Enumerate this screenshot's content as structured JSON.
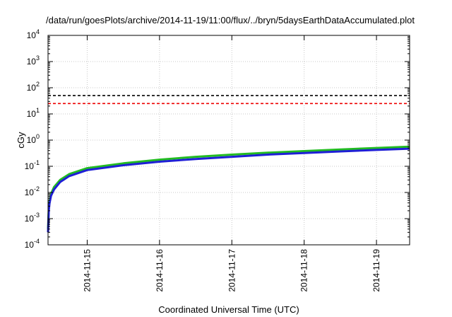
{
  "chart_data": {
    "type": "line",
    "title": "/data/run/goesPlots/archive/2014-11-19/11:00/flux/../bryn/5daysEarthDataAccumulated.plot",
    "xlabel": "Coordinated Universal Time (UTC)",
    "ylabel": "cGy",
    "yscale": "log",
    "ylim": [
      0.0001,
      10000
    ],
    "xlim": [
      "2014-11-14 11:00",
      "2014-11-19 11:00"
    ],
    "grid": true,
    "y_ticks": [
      {
        "base": "10",
        "exp": "-4",
        "value": 0.0001
      },
      {
        "base": "10",
        "exp": "-3",
        "value": 0.001
      },
      {
        "base": "10",
        "exp": "-2",
        "value": 0.01
      },
      {
        "base": "10",
        "exp": "-1",
        "value": 0.1
      },
      {
        "base": "10",
        "exp": "0",
        "value": 1
      },
      {
        "base": "10",
        "exp": "1",
        "value": 10
      },
      {
        "base": "10",
        "exp": "2",
        "value": 100
      },
      {
        "base": "10",
        "exp": "3",
        "value": 1000
      },
      {
        "base": "10",
        "exp": "4",
        "value": 10000
      }
    ],
    "x_ticks": [
      {
        "label": "2014-11-15",
        "value": "2014-11-15 00:00"
      },
      {
        "label": "2014-11-16",
        "value": "2014-11-16 00:00"
      },
      {
        "label": "2014-11-17",
        "value": "2014-11-17 00:00"
      },
      {
        "label": "2014-11-18",
        "value": "2014-11-18 00:00"
      },
      {
        "label": "2014-11-19",
        "value": "2014-11-19 00:00"
      }
    ],
    "series": [
      {
        "color": "#22bb22",
        "style": "solid",
        "points": [
          [
            "2014-11-14 11:00",
            0.0004
          ],
          [
            "2014-11-14 11:15",
            0.0025
          ],
          [
            "2014-11-14 11:30",
            0.0045
          ],
          [
            "2014-11-14 12:00",
            0.009
          ],
          [
            "2014-11-14 13:00",
            0.016
          ],
          [
            "2014-11-14 15:00",
            0.03
          ],
          [
            "2014-11-14 18:00",
            0.05
          ],
          [
            "2014-11-15 00:00",
            0.085
          ],
          [
            "2014-11-15 12:00",
            0.13
          ],
          [
            "2014-11-16 00:00",
            0.18
          ],
          [
            "2014-11-16 12:00",
            0.23
          ],
          [
            "2014-11-17 00:00",
            0.28
          ],
          [
            "2014-11-17 12:00",
            0.33
          ],
          [
            "2014-11-18 00:00",
            0.38
          ],
          [
            "2014-11-18 12:00",
            0.44
          ],
          [
            "2014-11-19 00:00",
            0.5
          ],
          [
            "2014-11-19 11:00",
            0.56
          ]
        ]
      },
      {
        "color": "#1f1fd6",
        "style": "solid",
        "points": [
          [
            "2014-11-14 11:00",
            0.0003
          ],
          [
            "2014-11-14 11:15",
            0.0021
          ],
          [
            "2014-11-14 11:30",
            0.0038
          ],
          [
            "2014-11-14 12:00",
            0.0075
          ],
          [
            "2014-11-14 13:00",
            0.013
          ],
          [
            "2014-11-14 15:00",
            0.025
          ],
          [
            "2014-11-14 18:00",
            0.042
          ],
          [
            "2014-11-15 00:00",
            0.072
          ],
          [
            "2014-11-15 12:00",
            0.11
          ],
          [
            "2014-11-16 00:00",
            0.15
          ],
          [
            "2014-11-16 12:00",
            0.19
          ],
          [
            "2014-11-17 00:00",
            0.23
          ],
          [
            "2014-11-17 12:00",
            0.28
          ],
          [
            "2014-11-18 00:00",
            0.32
          ],
          [
            "2014-11-18 12:00",
            0.37
          ],
          [
            "2014-11-19 00:00",
            0.42
          ],
          [
            "2014-11-19 11:00",
            0.47
          ]
        ]
      },
      {
        "color": "#000000",
        "style": "dashed",
        "points": [
          [
            "2014-11-14 11:00",
            50
          ],
          [
            "2014-11-19 11:00",
            50
          ]
        ]
      },
      {
        "color": "#ee0000",
        "style": "dashed",
        "points": [
          [
            "2014-11-14 11:00",
            25
          ],
          [
            "2014-11-19 11:00",
            25
          ]
        ]
      }
    ]
  }
}
